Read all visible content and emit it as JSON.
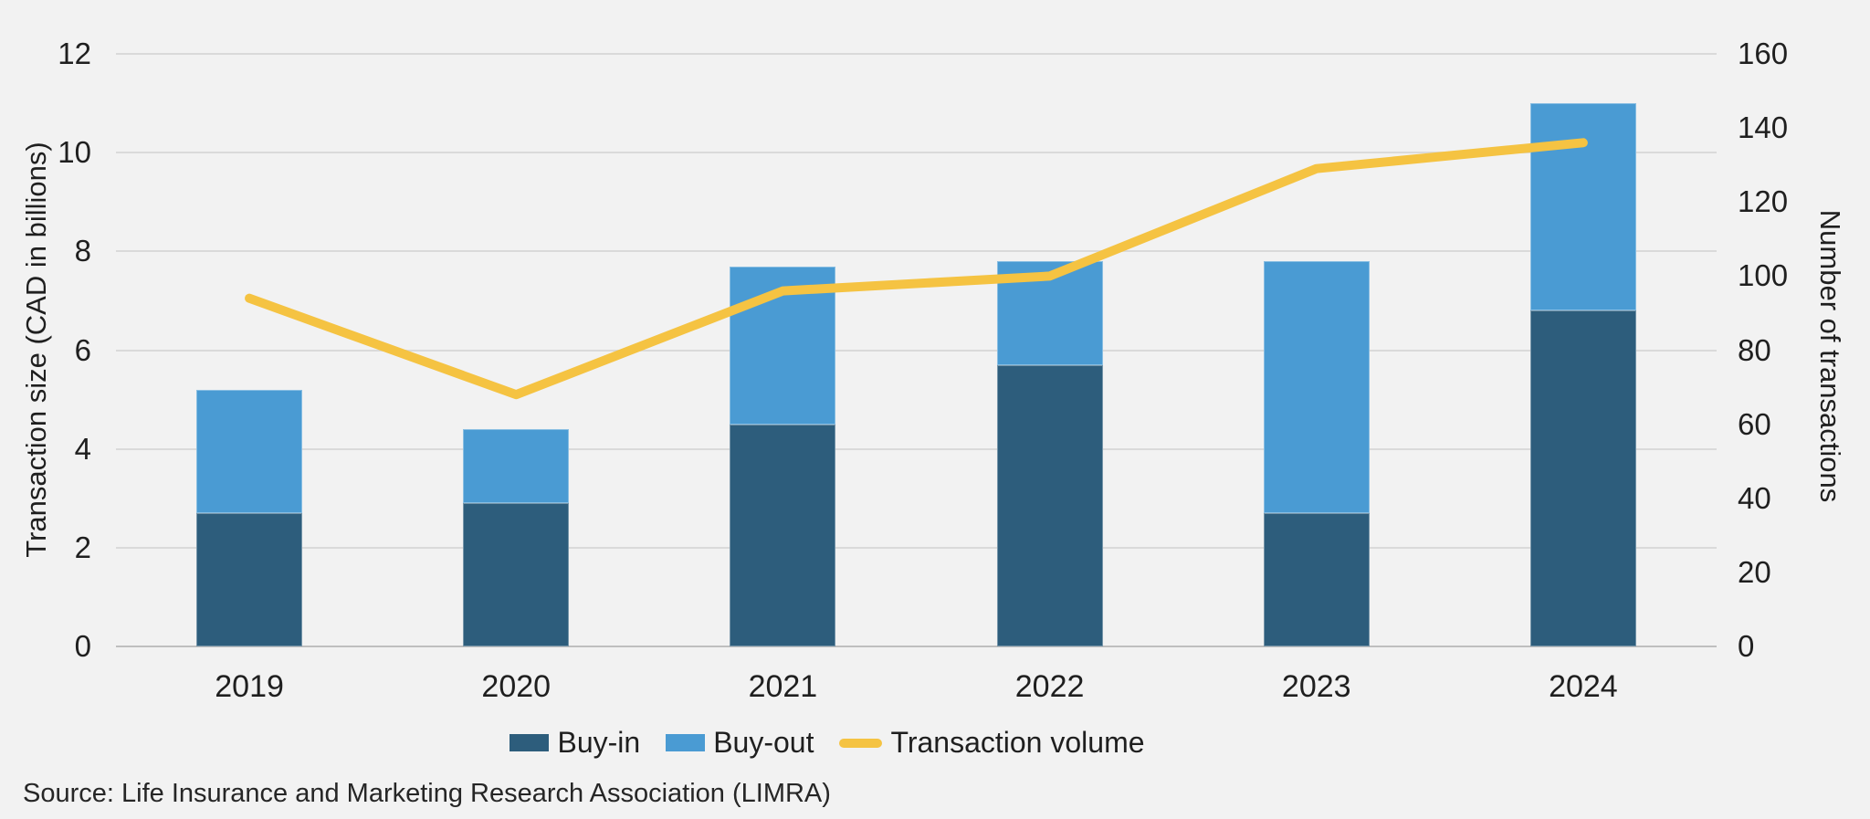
{
  "chart_data": {
    "type": "combo-stacked-bar-line",
    "categories": [
      "2019",
      "2020",
      "2021",
      "2022",
      "2023",
      "2024"
    ],
    "series": [
      {
        "name": "Buy-in",
        "type": "bar",
        "axis": "left",
        "color": "#2d5d7c",
        "values": [
          2.7,
          2.9,
          4.5,
          5.7,
          2.7,
          6.8
        ]
      },
      {
        "name": "Buy-out",
        "type": "bar",
        "axis": "left",
        "color": "#4a9bd3",
        "values": [
          2.5,
          1.5,
          3.2,
          2.1,
          5.1,
          4.2
        ]
      },
      {
        "name": "Transaction volume",
        "type": "line",
        "axis": "right",
        "color": "#f5c342",
        "values": [
          94,
          68,
          96,
          100,
          129,
          136
        ]
      }
    ],
    "stacked_totals": [
      5.2,
      4.4,
      7.7,
      7.8,
      7.8,
      11.0
    ],
    "left_axis": {
      "label": "Transaction size (CAD in billions)",
      "min": 0,
      "max": 12,
      "step": 2
    },
    "right_axis": {
      "label": "Number of transactions",
      "min": 0,
      "max": 160,
      "step": 20
    },
    "grid": true,
    "legend_position": "bottom"
  },
  "legend": {
    "buy_in_label": "Buy-in",
    "buy_out_label": "Buy-out",
    "volume_label": "Transaction volume"
  },
  "source_note": "Source: Life Insurance and Marketing Research Association (LIMRA)",
  "colors": {
    "background": "#f2f2f2",
    "gridline": "#dadada",
    "axis_line": "#bfbfbf",
    "text": "#1f1f1f",
    "buy_in": "#2d5d7c",
    "buy_out": "#4a9bd3",
    "volume_line": "#f5c342"
  }
}
